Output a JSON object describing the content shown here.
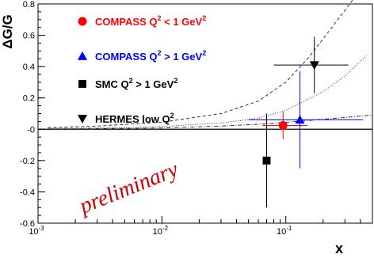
{
  "chart_data": {
    "type": "scatter",
    "title": "",
    "xlabel": "x",
    "ylabel": "ΔG/G",
    "xscale": "log",
    "xlim": [
      0.001,
      0.5
    ],
    "ylim": [
      -0.6,
      0.8
    ],
    "x_ticks": [
      {
        "value": 0.001,
        "base": "10",
        "exp": "-3"
      },
      {
        "value": 0.01,
        "base": "10",
        "exp": "-2"
      },
      {
        "value": 0.1,
        "base": "10",
        "exp": "-1"
      }
    ],
    "y_ticks": [
      {
        "value": 0.8,
        "label": "0.8"
      },
      {
        "value": 0.6,
        "label": "0.6"
      },
      {
        "value": 0.4,
        "label": "0.4"
      },
      {
        "value": 0.2,
        "label": "0.2"
      },
      {
        "value": 0,
        "label": "-0"
      },
      {
        "value": -0.2,
        "label": "-0.2"
      },
      {
        "value": -0.4,
        "label": "-0.4"
      },
      {
        "value": -0.6,
        "label": "-0.6"
      }
    ],
    "series": [
      {
        "name": "COMPASS Q² < 1 GeV²",
        "color": "#ff0000",
        "marker": "circle",
        "points": [
          {
            "x": 0.095,
            "y": 0.024,
            "xerr": [
              0.065,
              0.15
            ],
            "yerr": 0.089
          }
        ]
      },
      {
        "name": "COMPASS Q² > 1 GeV²",
        "color": "#0000ff",
        "marker": "triangle-up",
        "points": [
          {
            "x": 0.13,
            "y": 0.06,
            "xerr": [
              0.05,
              0.42
            ],
            "yerr": 0.31
          }
        ]
      },
      {
        "name": "SMC Q² > 1 GeV²",
        "color": "#000000",
        "marker": "square",
        "points": [
          {
            "x": 0.07,
            "y": -0.2,
            "xerr": null,
            "yerr": 0.3
          }
        ]
      },
      {
        "name": "HERMES low Q²",
        "color": "#000000",
        "marker": "triangle-down",
        "points": [
          {
            "x": 0.17,
            "y": 0.41,
            "xerr": [
              0.08,
              0.32
            ],
            "yerr": 0.18
          }
        ]
      }
    ],
    "curves": [
      {
        "style": "dashed",
        "points": [
          [
            0.0012,
            0.01
          ],
          [
            0.003,
            0.02
          ],
          [
            0.01,
            0.045
          ],
          [
            0.03,
            0.1
          ],
          [
            0.06,
            0.18
          ],
          [
            0.1,
            0.3
          ],
          [
            0.15,
            0.45
          ],
          [
            0.22,
            0.62
          ],
          [
            0.3,
            0.76
          ],
          [
            0.35,
            0.83
          ]
        ]
      },
      {
        "style": "dotted",
        "points": [
          [
            0.0012,
            0.005
          ],
          [
            0.005,
            0.01
          ],
          [
            0.01,
            0.018
          ],
          [
            0.03,
            0.04
          ],
          [
            0.06,
            0.07
          ],
          [
            0.1,
            0.12
          ],
          [
            0.2,
            0.24
          ],
          [
            0.3,
            0.34
          ],
          [
            0.45,
            0.47
          ]
        ]
      },
      {
        "style": "dashdot",
        "points": [
          [
            0.0012,
            0.0
          ],
          [
            0.01,
            0.008
          ],
          [
            0.03,
            0.02
          ],
          [
            0.07,
            0.035
          ],
          [
            0.15,
            0.055
          ],
          [
            0.3,
            0.075
          ],
          [
            0.5,
            0.09
          ]
        ]
      }
    ],
    "legend": {
      "position": "top-left",
      "entries": [
        {
          "main": "COMPASS Q",
          "sup1": "2",
          "mid": " < 1 GeV",
          "sup2": "2",
          "color": "#ff0000",
          "marker": "circle"
        },
        {
          "main": "COMPASS Q",
          "sup1": "2",
          "mid": " > 1 GeV",
          "sup2": "2",
          "color": "#0000ff",
          "marker": "triangle-up"
        },
        {
          "main": "SMC Q",
          "sup1": "2",
          "mid": " > 1 GeV",
          "sup2": "2",
          "color": "#000000",
          "marker": "square"
        },
        {
          "main": "HERMES low Q",
          "sup1": "2",
          "mid": "",
          "sup2": "",
          "color": "#000000",
          "marker": "triangle-down"
        }
      ]
    },
    "annotation": {
      "text": "preliminary",
      "color": "#cc0000"
    }
  }
}
